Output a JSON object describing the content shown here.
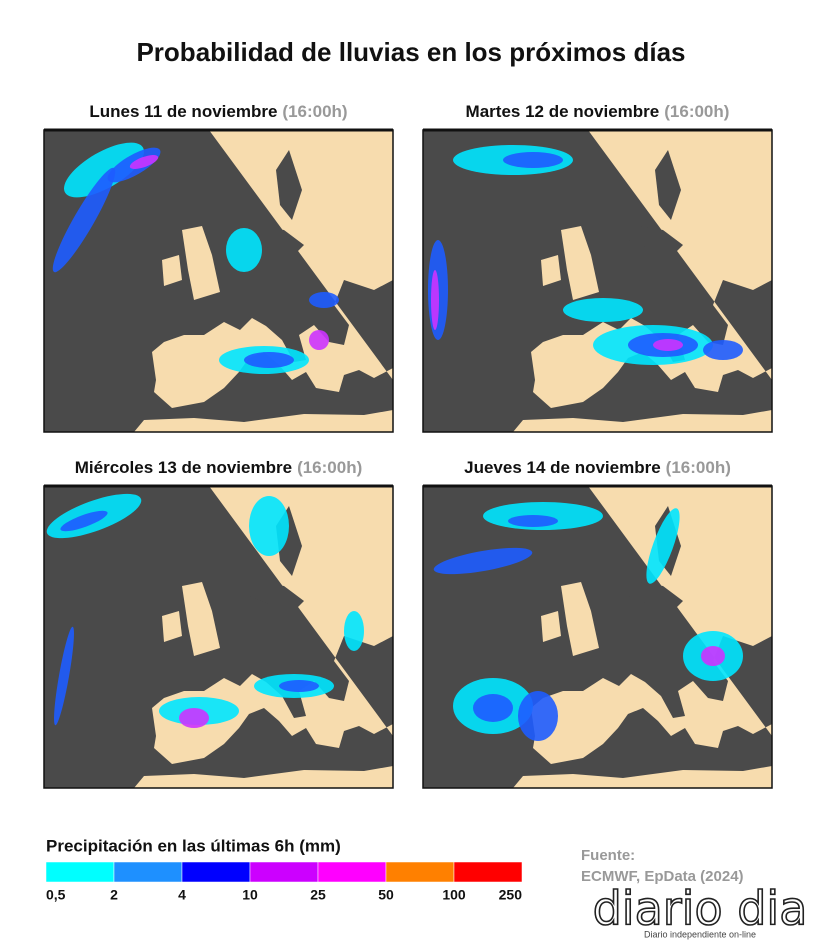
{
  "title": "Probabilidad de lluvias en los próximos días",
  "panels": [
    {
      "label": "Lunes 11 de noviembre",
      "time": "(16:00h)"
    },
    {
      "label": "Martes 12 de noviembre",
      "time": "(16:00h)"
    },
    {
      "label": "Miércoles 13 de noviembre",
      "time": "(16:00h)"
    },
    {
      "label": "Jueves 14 de noviembre",
      "time": "(16:00h)"
    }
  ],
  "legend": {
    "title": "Precipitación en las últimas 6h (mm)",
    "ticks": [
      "0,5",
      "2",
      "4",
      "10",
      "25",
      "50",
      "100",
      "250"
    ],
    "colors": [
      "#00ffff",
      "#1e90ff",
      "#0000ff",
      "#cc00ff",
      "#ff00ff",
      "#ff8000",
      "#ff0000"
    ]
  },
  "source": {
    "label": "Fuente:",
    "text": "ECMWF, EpData (2024)"
  },
  "logo": {
    "name": "diario dia",
    "tagline": "Diario independiente on-line"
  }
}
